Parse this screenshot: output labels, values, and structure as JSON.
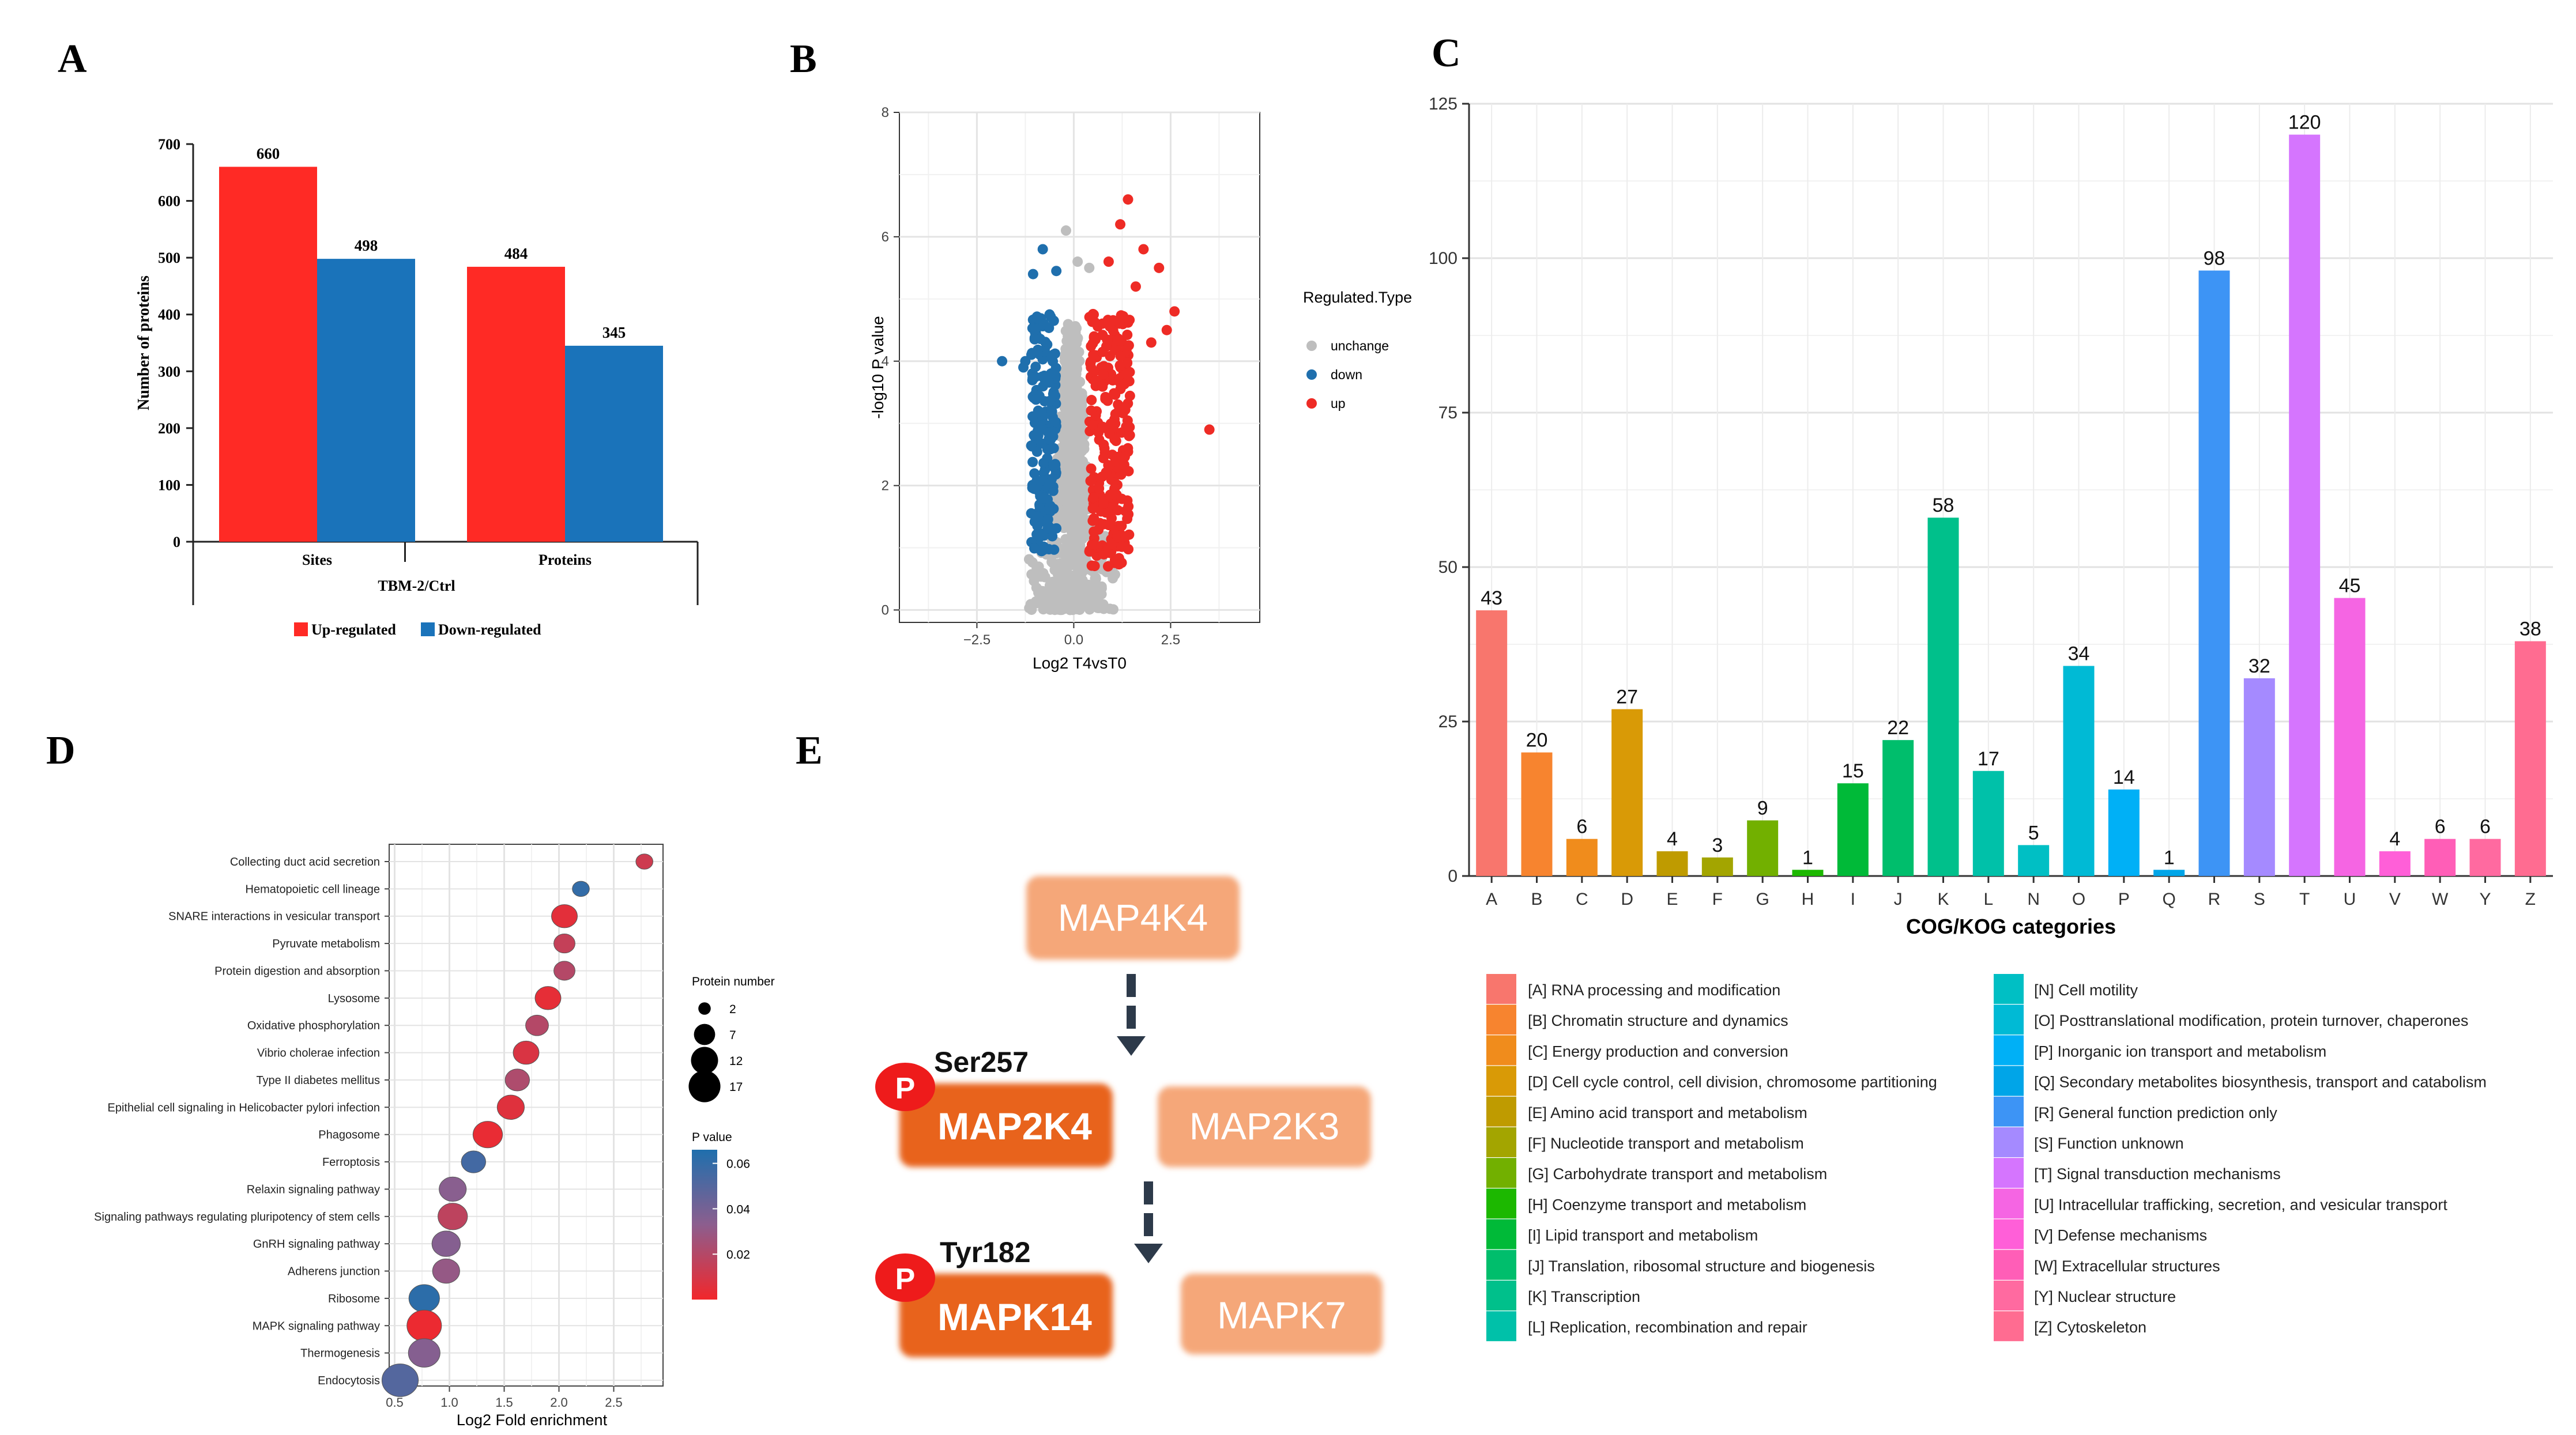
{
  "panel_labels": {
    "a": "A",
    "b": "B",
    "c": "C",
    "d": "D",
    "e": "E"
  },
  "chart_data": [
    {
      "id": "A",
      "type": "bar",
      "ylabel": "Number of proteins",
      "xlabel": "TBM-2/Ctrl",
      "categories": [
        "Sites",
        "Proteins"
      ],
      "series": [
        {
          "name": "Up-regulated",
          "color": "#ff2a25",
          "values": [
            660,
            484
          ]
        },
        {
          "name": "Down-regulated",
          "color": "#1a73ba",
          "values": [
            498,
            345
          ]
        }
      ],
      "ylim": [
        0,
        700
      ],
      "yticks": [
        0,
        100,
        200,
        300,
        400,
        500,
        600,
        700
      ],
      "legend": "bottom"
    },
    {
      "id": "B",
      "type": "scatter",
      "title": "",
      "xlabel": "Log2 T4vsT0",
      "ylabel": "-log10 P value",
      "xlim": [
        -4.5,
        4.8
      ],
      "ylim": [
        -0.2,
        8
      ],
      "xticks": [
        -2.5,
        0,
        2.5
      ],
      "xtick_labels": [
        "−2.5",
        "0.0",
        "2.5"
      ],
      "yticks": [
        0,
        2,
        4,
        6,
        8
      ],
      "legend_title": "Regulated.Type",
      "legend": [
        {
          "name": "unchange",
          "color": "#bebebe"
        },
        {
          "name": "down",
          "color": "#1f6fad"
        },
        {
          "name": "up",
          "color": "#ee2b25"
        }
      ],
      "grid": true
    },
    {
      "id": "C",
      "type": "bar",
      "xlabel": "COG/KOG categories",
      "ylabel": "",
      "ylim": [
        0,
        125
      ],
      "yticks": [
        0,
        25,
        50,
        75,
        100,
        125
      ],
      "categories": [
        "A",
        "B",
        "C",
        "D",
        "E",
        "F",
        "G",
        "H",
        "I",
        "J",
        "K",
        "L",
        "N",
        "O",
        "P",
        "Q",
        "R",
        "S",
        "T",
        "U",
        "V",
        "W",
        "Y",
        "Z"
      ],
      "values": [
        43,
        20,
        6,
        27,
        4,
        3,
        9,
        1,
        15,
        22,
        58,
        17,
        5,
        34,
        14,
        1,
        98,
        32,
        120,
        45,
        4,
        6,
        6,
        38
      ],
      "colors": [
        "#f8766d",
        "#f7842f",
        "#f08c1c",
        "#d99a06",
        "#bf9b00",
        "#a3a500",
        "#72b000",
        "#1cb800",
        "#00ba38",
        "#00be6c",
        "#00c08b",
        "#00c1a9",
        "#00bfc4",
        "#00bad5",
        "#00b0f6",
        "#00a5e8",
        "#3d94f5",
        "#a58aff",
        "#d575fe",
        "#f565e3",
        "#ff5fd8",
        "#ff5eb7",
        "#ff6aa0",
        "#ff6c91"
      ],
      "grid": true
    },
    {
      "id": "D",
      "type": "scatter",
      "xlabel": "Log2 Fold enrichment",
      "xlim": [
        0.45,
        2.95
      ],
      "xticks": [
        0.5,
        1.0,
        1.5,
        2.0,
        2.5
      ],
      "pathways": [
        {
          "name": "Collecting duct acid secretion",
          "x": 2.78,
          "size": 2,
          "p": 0.012
        },
        {
          "name": "Hematopoietic cell lineage",
          "x": 2.2,
          "size": 2,
          "p": 0.06
        },
        {
          "name": "SNARE interactions in vesicular transport",
          "x": 2.05,
          "size": 7,
          "p": 0.005
        },
        {
          "name": "Pyruvate metabolism",
          "x": 2.05,
          "size": 4,
          "p": 0.015
        },
        {
          "name": "Protein digestion and absorption",
          "x": 2.05,
          "size": 4,
          "p": 0.02
        },
        {
          "name": "Lysosome",
          "x": 1.9,
          "size": 7,
          "p": 0.004
        },
        {
          "name": "Oxidative phosphorylation",
          "x": 1.8,
          "size": 5,
          "p": 0.02
        },
        {
          "name": "Vibrio cholerae infection",
          "x": 1.7,
          "size": 7,
          "p": 0.008
        },
        {
          "name": "Type II diabetes mellitus",
          "x": 1.62,
          "size": 6,
          "p": 0.022
        },
        {
          "name": "Epithelial cell signaling in Helicobacter pylori infection",
          "x": 1.56,
          "size": 8,
          "p": 0.006
        },
        {
          "name": "Phagosome",
          "x": 1.35,
          "size": 10,
          "p": 0.003
        },
        {
          "name": "Ferroptosis",
          "x": 1.22,
          "size": 6,
          "p": 0.055
        },
        {
          "name": "Relaxin signaling pathway",
          "x": 1.03,
          "size": 8,
          "p": 0.034
        },
        {
          "name": "Signaling pathways regulating pluripotency of stem cells",
          "x": 1.03,
          "size": 10,
          "p": 0.017
        },
        {
          "name": "GnRH signaling pathway",
          "x": 0.97,
          "size": 9,
          "p": 0.035
        },
        {
          "name": "Adherens junction",
          "x": 0.97,
          "size": 8,
          "p": 0.03
        },
        {
          "name": "Ribosome",
          "x": 0.77,
          "size": 11,
          "p": 0.062
        },
        {
          "name": "MAPK signaling pathway",
          "x": 0.77,
          "size": 15,
          "p": 0.002
        },
        {
          "name": "Thermogenesis",
          "x": 0.77,
          "size": 12,
          "p": 0.035
        },
        {
          "name": "Endocytosis",
          "x": 0.55,
          "size": 17,
          "p": 0.05
        }
      ],
      "size_legend_title": "Protein number",
      "size_legend": [
        2,
        7,
        12,
        17
      ],
      "color_legend_title": "P value",
      "color_legend_ticks": [
        {
          "label": "0.06",
          "p": 0.06
        },
        {
          "label": "0.04",
          "p": 0.04
        },
        {
          "label": "0.02",
          "p": 0.02
        }
      ],
      "pmax": 0.066
    }
  ],
  "cog_legend": {
    "left": [
      "[A] RNA processing and modification",
      "[B] Chromatin structure and dynamics",
      "[C] Energy production and conversion",
      "[D] Cell cycle control, cell division, chromosome partitioning",
      "[E] Amino acid transport and metabolism",
      "[F] Nucleotide transport and metabolism",
      "[G] Carbohydrate transport and metabolism",
      "[H] Coenzyme transport and metabolism",
      "[I] Lipid transport and metabolism",
      "[J] Translation, ribosomal structure and biogenesis",
      "[K] Transcription",
      "[L] Replication, recombination and repair"
    ],
    "right": [
      "[N] Cell motility",
      "[O] Posttranslational modification, protein turnover, chaperones",
      "[P] Inorganic ion transport and metabolism",
      "[Q] Secondary metabolites biosynthesis, transport and catabolism",
      "[R] General function prediction only",
      "[S] Function unknown",
      "[T] Signal transduction mechanisms",
      "[U] Intracellular trafficking, secretion, and vesicular transport",
      "[V] Defense mechanisms",
      "[W] Extracellular structures",
      "[Y] Nuclear structure",
      "[Z] Cytoskeleton"
    ]
  },
  "pathway_diagram": {
    "top_kinase": "MAP4K4",
    "mid_kinase": "MAP2K4",
    "mid_site": "Ser257",
    "mid_other": "MAP2K3",
    "bottom_kinase": "MAPK14",
    "bottom_site": "Tyr182",
    "bottom_other": "MAPK7",
    "phospho_badge": "P",
    "colors": {
      "strong": "#e8641f",
      "light": "#f5a779",
      "badge": "#ee1b1b",
      "arrow": "#2d3a4a"
    }
  }
}
